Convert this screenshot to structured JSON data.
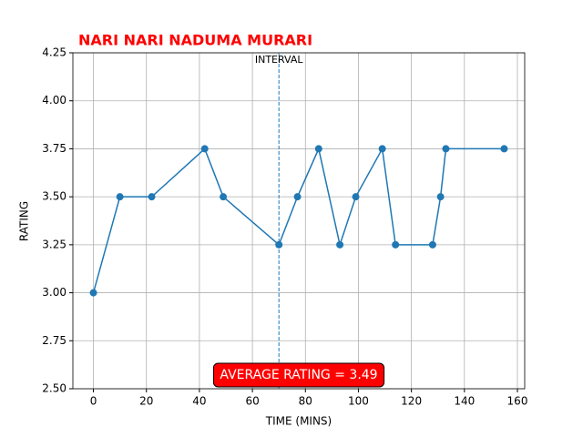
{
  "chart_data": {
    "type": "line",
    "title": "NARI NARI NADUMA MURARI",
    "x_label": "TIME (MINS)",
    "y_label": "RATING",
    "series": [
      {
        "color": "#1f77b4",
        "x": [
          0,
          10,
          22,
          42,
          49,
          70,
          77,
          85,
          93,
          99,
          109,
          114,
          128,
          131,
          133,
          155
        ],
        "values": [
          3.0,
          3.5,
          3.5,
          3.75,
          3.5,
          3.25,
          3.5,
          3.75,
          3.25,
          3.5,
          3.75,
          3.25,
          3.25,
          3.5,
          3.75,
          3.75
        ]
      }
    ],
    "xlim": [
      -7.75,
      162.75
    ],
    "ylim": [
      2.5,
      4.25
    ],
    "xticks": [
      0,
      20,
      40,
      60,
      80,
      100,
      120,
      140,
      160
    ],
    "yticks": [
      {
        "value": 2.5,
        "label": "2.50"
      },
      {
        "value": 2.75,
        "label": "2.75"
      },
      {
        "value": 3.0,
        "label": "3.00"
      },
      {
        "value": 3.25,
        "label": "3.25"
      },
      {
        "value": 3.5,
        "label": "3.50"
      },
      {
        "value": 3.75,
        "label": "3.75"
      },
      {
        "value": 4.0,
        "label": "4.00"
      },
      {
        "value": 4.25,
        "label": "4.25"
      }
    ],
    "grid": true,
    "vline": {
      "x": 70,
      "label": "INTERVAL"
    },
    "annotation": "AVERAGE RATING = 3.49"
  }
}
